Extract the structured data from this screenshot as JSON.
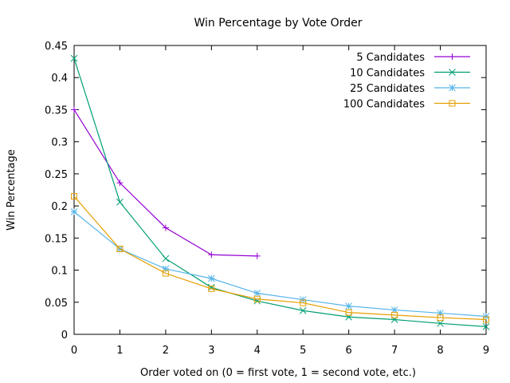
{
  "chart_data": {
    "type": "line",
    "title": "Win Percentage by Vote Order",
    "xlabel": "Order voted on (0 = first vote, 1 = second vote, etc.)",
    "ylabel": "Win Percentage",
    "xlim": [
      0,
      9
    ],
    "ylim": [
      0,
      0.45
    ],
    "xticks": [
      0,
      1,
      2,
      3,
      4,
      5,
      6,
      7,
      8,
      9
    ],
    "xtick_labels": [
      "0",
      "1",
      "2",
      "3",
      "4",
      "5",
      "6",
      "7",
      "8",
      "9"
    ],
    "yticks": [
      0,
      0.05,
      0.1,
      0.15,
      0.2,
      0.25,
      0.3,
      0.35,
      0.4,
      0.45
    ],
    "ytick_labels": [
      "0",
      "0.05",
      "0.1",
      "0.15",
      "0.2",
      "0.25",
      "0.3",
      "0.35",
      "0.4",
      "0.45"
    ],
    "grid": false,
    "legend_position": "top-right",
    "series": [
      {
        "name": "5 Candidates",
        "color": "#9400d3",
        "marker": "plus",
        "x": [
          0,
          1,
          2,
          3,
          4
        ],
        "y": [
          0.35,
          0.236,
          0.166,
          0.124,
          0.122
        ]
      },
      {
        "name": "10 Candidates",
        "color": "#009e73",
        "marker": "cross",
        "x": [
          0,
          1,
          2,
          3,
          4,
          5,
          6,
          7,
          8,
          9
        ],
        "y": [
          0.43,
          0.206,
          0.118,
          0.073,
          0.052,
          0.037,
          0.027,
          0.023,
          0.017,
          0.012
        ]
      },
      {
        "name": "25 Candidates",
        "color": "#56b4e9",
        "marker": "star",
        "x": [
          0,
          1,
          2,
          3,
          4,
          5,
          6,
          7,
          8,
          9
        ],
        "y": [
          0.191,
          0.133,
          0.102,
          0.087,
          0.064,
          0.054,
          0.044,
          0.038,
          0.033,
          0.028
        ]
      },
      {
        "name": "100 Candidates",
        "color": "#e69f00",
        "marker": "square",
        "x": [
          0,
          1,
          2,
          3,
          4,
          5,
          6,
          7,
          8,
          9
        ],
        "y": [
          0.215,
          0.133,
          0.095,
          0.071,
          0.055,
          0.049,
          0.034,
          0.03,
          0.026,
          0.023
        ]
      }
    ]
  }
}
